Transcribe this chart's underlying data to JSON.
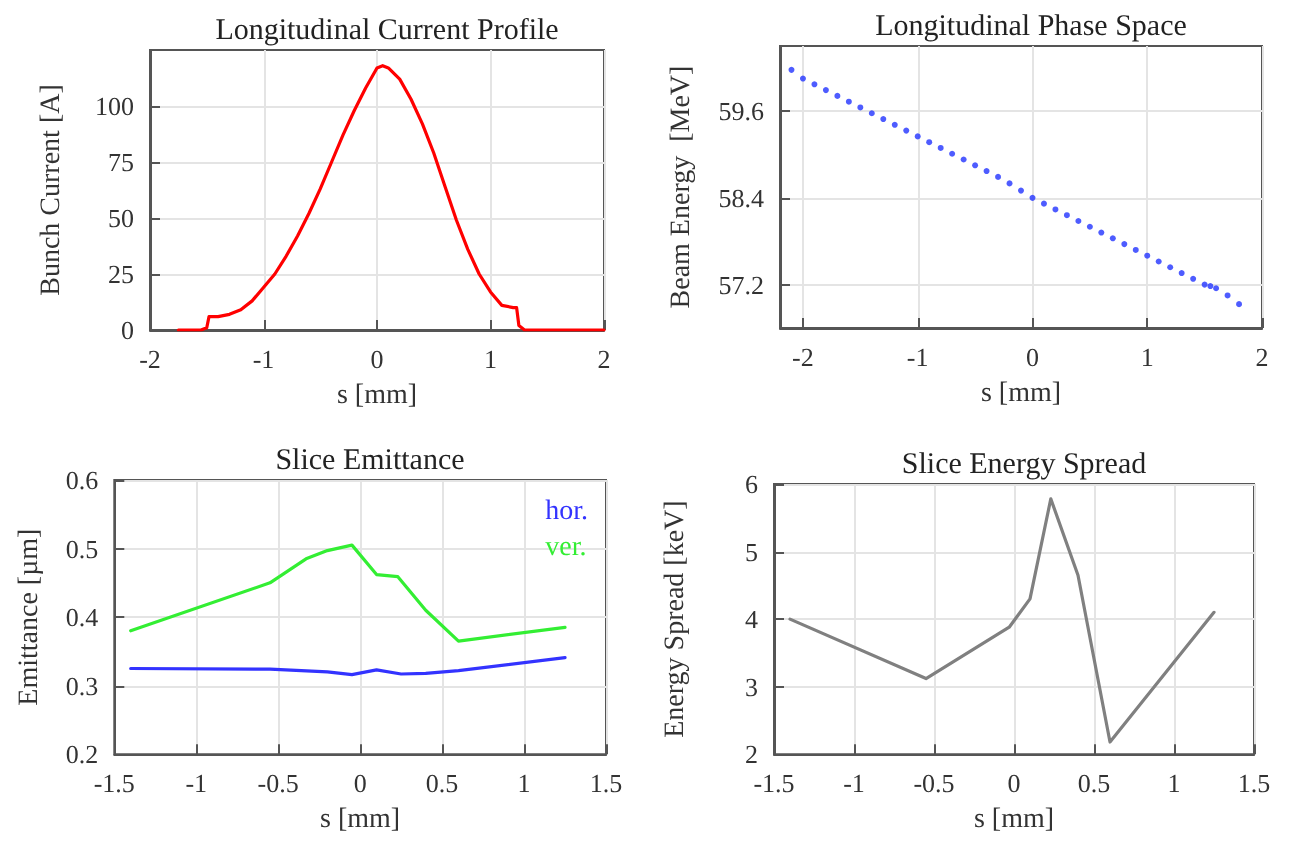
{
  "chart_data": [
    {
      "type": "line",
      "title": "Longitudinal Current Profile",
      "xlabel": "s [mm]",
      "ylabel": "Bunch Current [A]",
      "xlim": [
        -2,
        2
      ],
      "xticks": [
        -2,
        -1,
        0,
        1,
        2
      ],
      "ylim": [
        0,
        125
      ],
      "yticks": [
        0,
        25,
        50,
        75,
        100
      ],
      "grid": true,
      "marker": "none",
      "line_style": "solid",
      "series": [
        {
          "color": "#ff0000",
          "x": [
            -1.75,
            -1.55,
            -1.5,
            -1.48,
            -1.4,
            -1.3,
            -1.2,
            -1.1,
            -1,
            -0.9,
            -0.8,
            -0.7,
            -0.6,
            -0.5,
            -0.4,
            -0.3,
            -0.2,
            -0.1,
            0,
            0.05,
            0.1,
            0.2,
            0.3,
            0.4,
            0.5,
            0.6,
            0.7,
            0.8,
            0.9,
            1,
            1.1,
            1.2,
            1.23,
            1.25,
            1.3,
            1.4,
            2
          ],
          "values": [
            0,
            0,
            1,
            6,
            6,
            7,
            9,
            13,
            19,
            25,
            33,
            42,
            52,
            63,
            75,
            87,
            98,
            108,
            117,
            118,
            117,
            112,
            103,
            92,
            79,
            64,
            49,
            36,
            25,
            17,
            11,
            10,
            10,
            2,
            0,
            0,
            0
          ]
        }
      ]
    },
    {
      "type": "scatter",
      "title": "Longitudinal Phase Space",
      "xlabel": "s [mm]",
      "ylabel": "Beam Energy  [MeV]",
      "xlim": [
        -2.2,
        2
      ],
      "xticks": [
        -2,
        -1,
        0,
        1,
        2
      ],
      "ylim": [
        56.6,
        60.5
      ],
      "yticks": [
        57.2,
        58.4,
        59.6
      ],
      "grid": true,
      "marker": "circle",
      "series": [
        {
          "color": "#2233ff",
          "x": [
            -2.1,
            -2,
            -1.9,
            -1.8,
            -1.7,
            -1.6,
            -1.5,
            -1.4,
            -1.3,
            -1.2,
            -1.1,
            -1,
            -0.9,
            -0.8,
            -0.7,
            -0.6,
            -0.5,
            -0.4,
            -0.3,
            -0.2,
            -0.1,
            0,
            0.1,
            0.2,
            0.3,
            0.4,
            0.5,
            0.6,
            0.7,
            0.8,
            0.9,
            1,
            1.1,
            1.2,
            1.3,
            1.4,
            1.5,
            1.55,
            1.6,
            1.7,
            1.8
          ],
          "values": [
            60.17,
            60.05,
            59.97,
            59.89,
            59.81,
            59.73,
            59.65,
            59.57,
            59.49,
            59.41,
            59.33,
            59.25,
            59.17,
            59.09,
            59.01,
            58.93,
            58.85,
            58.77,
            58.69,
            58.6,
            58.5,
            58.4,
            58.32,
            58.24,
            58.16,
            58.08,
            58.0,
            57.92,
            57.84,
            57.76,
            57.68,
            57.6,
            57.52,
            57.44,
            57.36,
            57.28,
            57.2,
            57.18,
            57.15,
            57.05,
            56.93
          ]
        }
      ]
    },
    {
      "type": "line",
      "title": "Slice Emittance",
      "xlabel": "s [mm]",
      "ylabel": "Emittance [µm]",
      "xlim": [
        -1.5,
        1.5
      ],
      "xticks": [
        -1.5,
        -1,
        -0.5,
        0,
        0.5,
        1,
        1.5
      ],
      "ylim": [
        0.2,
        0.6
      ],
      "yticks": [
        0.2,
        0.3,
        0.4,
        0.5,
        0.6
      ],
      "grid": true,
      "legend": "top right",
      "marker": "none",
      "line_style": "solid",
      "series": [
        {
          "name": "hor.",
          "color": "#3333ff",
          "x": [
            -1.4,
            -0.55,
            -0.2,
            -0.05,
            0.1,
            0.25,
            0.4,
            0.6,
            1.25
          ],
          "values": [
            0.325,
            0.324,
            0.32,
            0.316,
            0.323,
            0.317,
            0.318,
            0.322,
            0.341
          ]
        },
        {
          "name": "ver.",
          "color": "#33ee33",
          "x": [
            -1.4,
            -0.55,
            -0.33,
            -0.2,
            -0.05,
            0.1,
            0.23,
            0.4,
            0.6,
            1.25
          ],
          "values": [
            0.38,
            0.45,
            0.485,
            0.497,
            0.505,
            0.462,
            0.459,
            0.41,
            0.365,
            0.385
          ]
        }
      ]
    },
    {
      "type": "line",
      "title": "Slice Energy Spread",
      "xlabel": "s [mm]",
      "ylabel": "Energy Spread [keV]",
      "xlim": [
        -1.5,
        1.5
      ],
      "xticks": [
        -1.5,
        -1,
        -0.5,
        0,
        0.5,
        1,
        1.5
      ],
      "ylim": [
        2,
        6
      ],
      "yticks": [
        2,
        3,
        4,
        5,
        6
      ],
      "grid": true,
      "marker": "none",
      "line_style": "solid",
      "series": [
        {
          "color": "#808080",
          "x": [
            -1.4,
            -0.55,
            -0.03,
            0.1,
            0.23,
            0.4,
            0.6,
            1.25
          ],
          "values": [
            4.0,
            3.12,
            3.88,
            4.3,
            5.78,
            4.65,
            2.18,
            4.1
          ]
        }
      ]
    }
  ]
}
